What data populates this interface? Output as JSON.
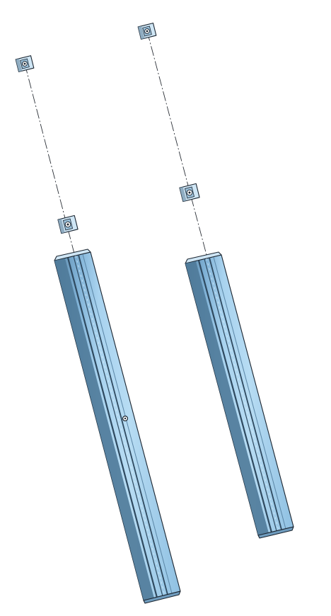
{
  "scene": {
    "background": "#ffffff",
    "colors": {
      "extrusion_light": "#a9d3ef",
      "extrusion_mid": "#7fb1d6",
      "extrusion_dark": "#4f7a99",
      "slot_shadow": "#2f4a60",
      "outline": "#1b2530",
      "nut_face": "#cfe6f5",
      "nut_side": "#7f9fb5"
    },
    "components": [
      {
        "type": "aluminum-extrusion-profile",
        "count": 2
      },
      {
        "type": "t-slot-nut",
        "count": 4
      },
      {
        "type": "center-axis",
        "count": 2
      }
    ]
  }
}
